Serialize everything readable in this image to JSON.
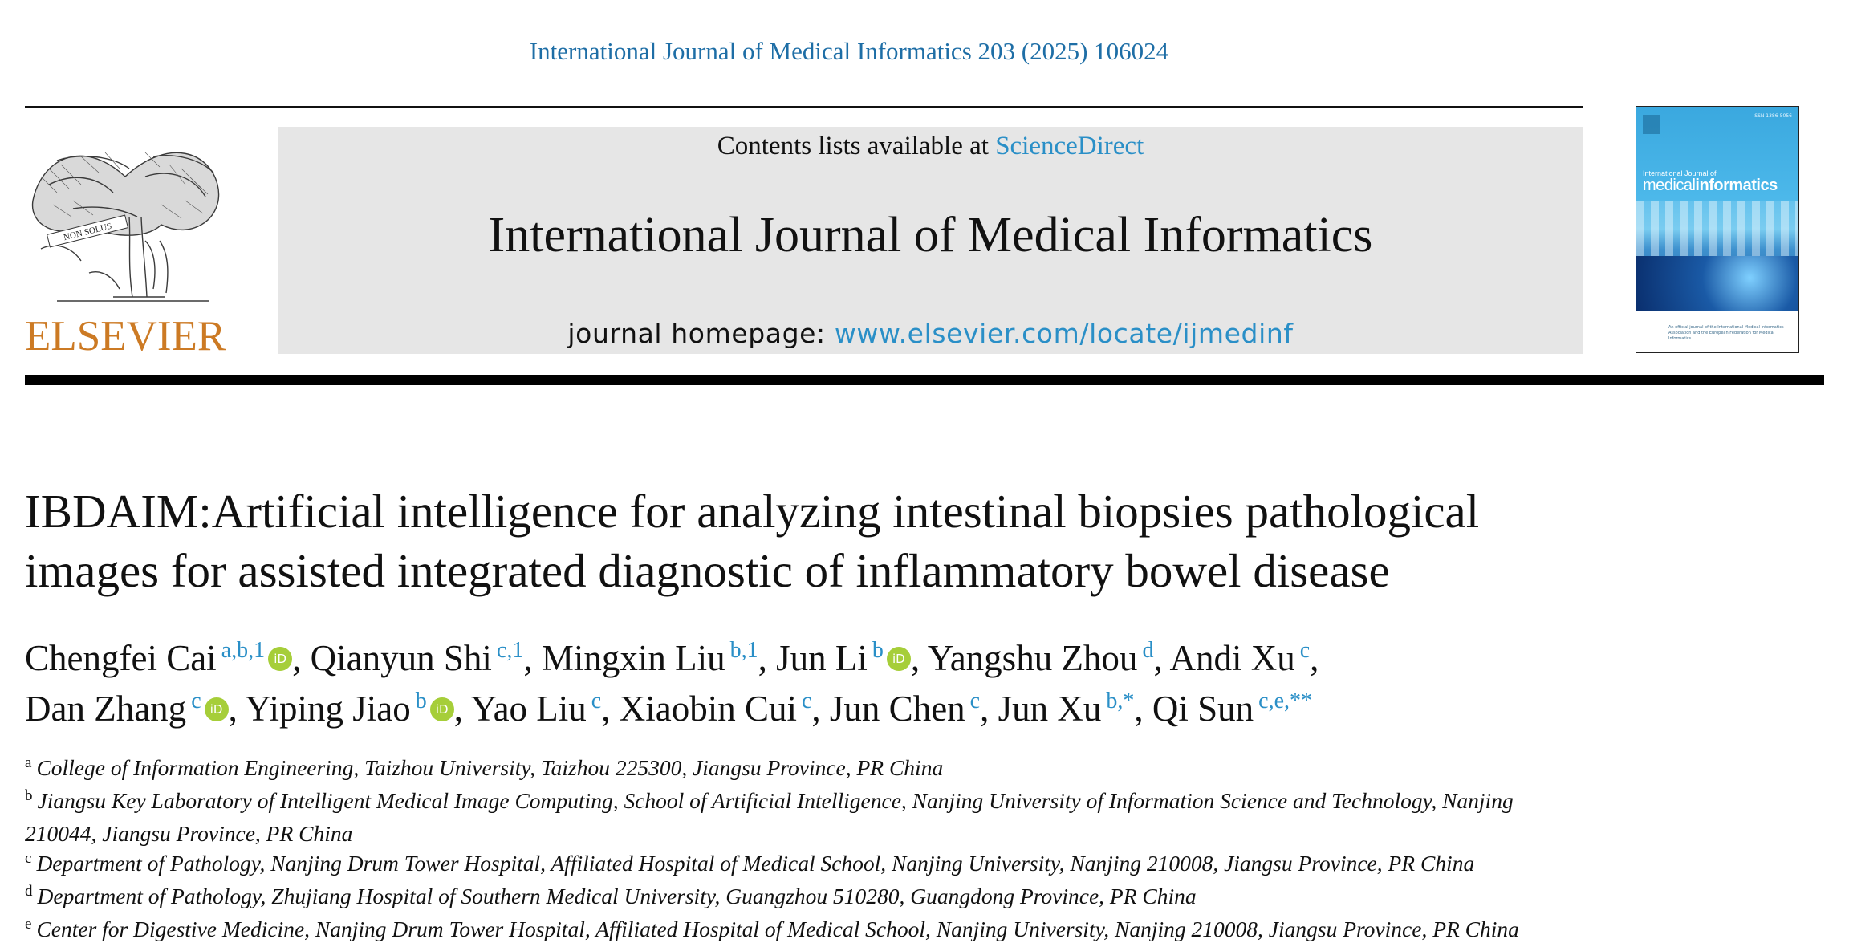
{
  "citation": "International Journal of Medical Informatics 203 (2025) 106024",
  "publisher": {
    "logo_text": "ELSEVIER",
    "banner_scroll": "NON SOLUS"
  },
  "banner": {
    "contents_prefix": "Contents lists available at ",
    "contents_link": "ScienceDirect",
    "journal_title": "International Journal of Medical Informatics",
    "homepage_prefix": "journal homepage: ",
    "homepage_link": "www.elsevier.com/locate/ijmedinf"
  },
  "cover": {
    "issn": "ISSN 1386-5056",
    "title_small": "International Journal of",
    "title_big_a": "medical",
    "title_big_b": "informatics",
    "footer": "An official journal of the International Medical Informatics Association and the European Federation for Medical Informatics"
  },
  "article": {
    "title_line1": "IBDAIM:Artificial intelligence for analyzing intestinal biopsies pathological",
    "title_line2": "images for assisted integrated diagnostic of inflammatory bowel disease"
  },
  "authors": [
    {
      "name": "Chengfei Cai",
      "sup": "a,b,1",
      "orcid": true,
      "sep": ", "
    },
    {
      "name": "Qianyun Shi",
      "sup": "c,1",
      "orcid": false,
      "sep": ", "
    },
    {
      "name": "Mingxin Liu",
      "sup": "b,1",
      "orcid": false,
      "sep": ", "
    },
    {
      "name": "Jun Li",
      "sup": "b",
      "orcid": true,
      "sep": ", "
    },
    {
      "name": "Yangshu Zhou",
      "sup": "d",
      "orcid": false,
      "sep": ", "
    },
    {
      "name": "Andi Xu",
      "sup": "c",
      "orcid": false,
      "sep": ","
    },
    {
      "name": "Dan Zhang",
      "sup": "c",
      "orcid": true,
      "sep": ", "
    },
    {
      "name": "Yiping Jiao",
      "sup": "b",
      "orcid": true,
      "sep": ", "
    },
    {
      "name": "Yao Liu",
      "sup": "c",
      "orcid": false,
      "sep": ", "
    },
    {
      "name": "Xiaobin Cui",
      "sup": "c",
      "orcid": false,
      "sep": ", "
    },
    {
      "name": "Jun Chen",
      "sup": "c",
      "orcid": false,
      "sep": ", "
    },
    {
      "name": "Jun Xu",
      "sup": "b,*",
      "orcid": false,
      "sep": ", "
    },
    {
      "name": "Qi Sun",
      "sup": "c,e,**",
      "orcid": false,
      "sep": ""
    }
  ],
  "orcid_glyph": "iD",
  "affiliations": [
    {
      "letter": "a",
      "text": "College of Information Engineering, Taizhou University, Taizhou 225300, Jiangsu Province, PR China"
    },
    {
      "letter": "b",
      "text": "Jiangsu Key Laboratory of Intelligent Medical Image Computing, School of Artificial Intelligence, Nanjing University of Information Science and Technology, Nanjing 210044, Jiangsu Province, PR China"
    },
    {
      "letter": "c",
      "text": "Department of Pathology, Nanjing Drum Tower Hospital, Affiliated Hospital of Medical School, Nanjing University, Nanjing 210008, Jiangsu Province, PR China"
    },
    {
      "letter": "d",
      "text": "Department of Pathology, Zhujiang Hospital of Southern Medical University, Guangzhou 510280, Guangdong Province, PR China"
    },
    {
      "letter": "e",
      "text": "Center for Digestive Medicine, Nanjing Drum Tower Hospital, Affiliated Hospital of Medical School, Nanjing University, Nanjing 210008, Jiangsu Province, PR China"
    }
  ],
  "colors": {
    "link_blue": "#2a8fc7",
    "citation_blue": "#1e6ea6",
    "elsevier_orange": "#cc7a24",
    "banner_grey": "#e6e6e6",
    "orcid_green": "#a6ce39"
  }
}
